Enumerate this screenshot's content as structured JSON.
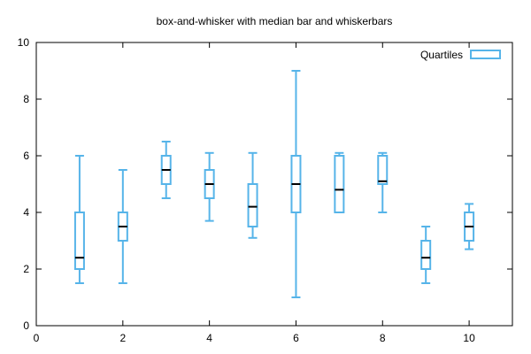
{
  "chart_data": {
    "type": "box",
    "title": "box-and-whisker with median bar and whiskerbars",
    "xlabel": "",
    "ylabel": "",
    "xlim": [
      0,
      11
    ],
    "ylim": [
      0,
      10
    ],
    "x_ticks": [
      0,
      2,
      4,
      6,
      8,
      10
    ],
    "y_ticks": [
      0,
      2,
      4,
      6,
      8,
      10
    ],
    "grid": false,
    "legend_position": "top-right",
    "series": [
      {
        "name": "Quartiles",
        "color": "#56b4e9",
        "median_color": "#000000",
        "boxes": [
          {
            "x": 1,
            "min": 1.5,
            "q1": 2.0,
            "median": 2.4,
            "q3": 4.0,
            "max": 6.0
          },
          {
            "x": 2,
            "min": 1.5,
            "q1": 3.0,
            "median": 3.5,
            "q3": 4.0,
            "max": 5.5
          },
          {
            "x": 3,
            "min": 4.5,
            "q1": 5.0,
            "median": 5.5,
            "q3": 6.0,
            "max": 6.5
          },
          {
            "x": 4,
            "min": 3.7,
            "q1": 4.5,
            "median": 5.0,
            "q3": 5.5,
            "max": 6.1
          },
          {
            "x": 5,
            "min": 3.1,
            "q1": 3.5,
            "median": 4.2,
            "q3": 5.0,
            "max": 6.1
          },
          {
            "x": 6,
            "min": 1.0,
            "q1": 4.0,
            "median": 5.0,
            "q3": 6.0,
            "max": 9.0
          },
          {
            "x": 7,
            "min": 4.0,
            "q1": 4.0,
            "median": 4.8,
            "q3": 6.0,
            "max": 6.1
          },
          {
            "x": 8,
            "min": 4.0,
            "q1": 5.0,
            "median": 5.1,
            "q3": 6.0,
            "max": 6.1
          },
          {
            "x": 9,
            "min": 1.5,
            "q1": 2.0,
            "median": 2.4,
            "q3": 3.0,
            "max": 3.5
          },
          {
            "x": 10,
            "min": 2.7,
            "q1": 3.0,
            "median": 3.5,
            "q3": 4.0,
            "max": 4.3
          }
        ]
      }
    ]
  }
}
